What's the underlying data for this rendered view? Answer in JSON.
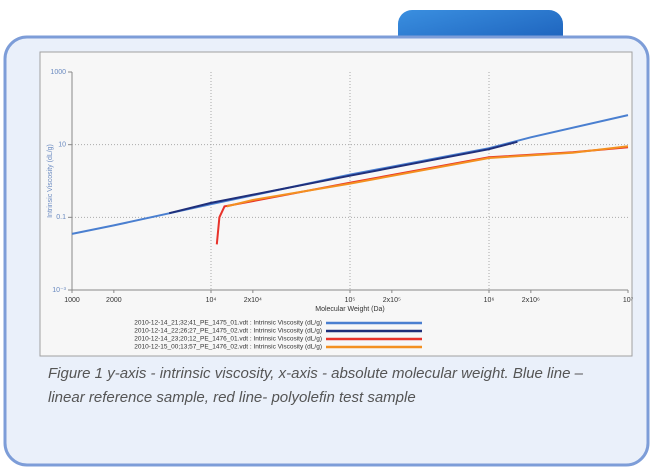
{
  "chart_data": {
    "type": "line",
    "xlabel": "Molecular Weight (Da)",
    "ylabel": "Intrinsic Viscosity (dL/g)",
    "xscale": "log",
    "yscale": "log",
    "grid": true,
    "xlim": [
      1000,
      10000000
    ],
    "ylim": [
      0.001,
      1000
    ],
    "xticks": [
      1000,
      2000,
      {
        "value": 10000,
        "label": "10⁴"
      },
      {
        "value": 20000,
        "label": "2x10⁴"
      },
      {
        "value": 100000,
        "label": "10⁵"
      },
      {
        "value": 200000,
        "label": "2x10⁵"
      },
      {
        "value": 1000000,
        "label": "10⁶"
      },
      {
        "value": 2000000,
        "label": "2x10⁶"
      },
      {
        "value": 10000000,
        "label": "10⁷"
      }
    ],
    "yticks": [
      {
        "value": 0.001,
        "label": "10⁻³"
      },
      0.1,
      10,
      1000
    ],
    "series": [
      {
        "name": "2010-12-14_21;32;41_PE_1475_01.vdt : Intrinsic Viscosity (dL/g)",
        "color": "#4a7fd0",
        "x": [
          1000,
          2000,
          10000,
          100000,
          1000000,
          2000000,
          10000000
        ],
        "values": [
          0.035,
          0.06,
          0.23,
          1.5,
          8,
          16,
          65
        ]
      },
      {
        "name": "2010-12-14_22;26;27_PE_1475_02.vdt : Intrinsic Viscosity (dL/g)",
        "color": "#1f2f7a",
        "x": [
          5000,
          10000,
          100000,
          1000000,
          1600000
        ],
        "values": [
          0.13,
          0.25,
          1.4,
          7.5,
          12
        ]
      },
      {
        "name": "2010-12-14_23;20;12_PE_1476_01.vdt : Intrinsic Viscosity (dL/g)",
        "color": "#e8322a",
        "x": [
          11000,
          11500,
          12500,
          20000,
          100000,
          1000000,
          4000000,
          10000000
        ],
        "values": [
          0.018,
          0.1,
          0.2,
          0.28,
          0.9,
          4.5,
          6.2,
          8.5
        ]
      },
      {
        "name": "2010-12-15_00;13;57_PE_1476_02.vdt : Intrinsic Viscosity (dL/g)",
        "color": "#f39020",
        "x": [
          13000,
          20000,
          100000,
          1000000,
          4000000,
          10000000
        ],
        "values": [
          0.2,
          0.3,
          0.85,
          4.3,
          6,
          9
        ]
      }
    ]
  },
  "caption": "Figure 1 y-axis - intrinsic viscosity, x-axis - absolute molecular weight. Blue line – linear reference sample, red line- polyolefin test sample"
}
